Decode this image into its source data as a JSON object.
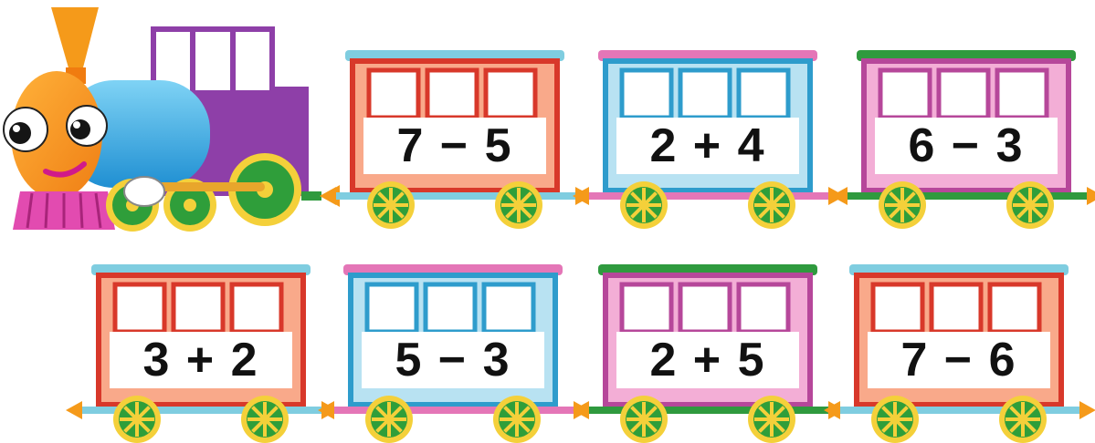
{
  "train": {
    "cars": [
      {
        "expression": "7 − 5",
        "color": "red"
      },
      {
        "expression": "2 + 4",
        "color": "blue"
      },
      {
        "expression": "6 − 3",
        "color": "pink"
      },
      {
        "expression": "3 + 2",
        "color": "red"
      },
      {
        "expression": "5 − 3",
        "color": "blue"
      },
      {
        "expression": "2 + 5",
        "color": "pink"
      },
      {
        "expression": "7 − 6",
        "color": "red"
      }
    ]
  },
  "palette": {
    "red": {
      "body": "#f9a98a",
      "frame": "#d8382a",
      "roof": "#7fcde0"
    },
    "blue": {
      "body": "#b8e2f2",
      "frame": "#2e9ccc",
      "roof": "#e476b7"
    },
    "pink": {
      "body": "#f3aed6",
      "frame": "#b6479a",
      "roof": "#2f9a3e"
    },
    "wheel": "#2f9e3a",
    "wheel_rim": "#f4d03a"
  }
}
